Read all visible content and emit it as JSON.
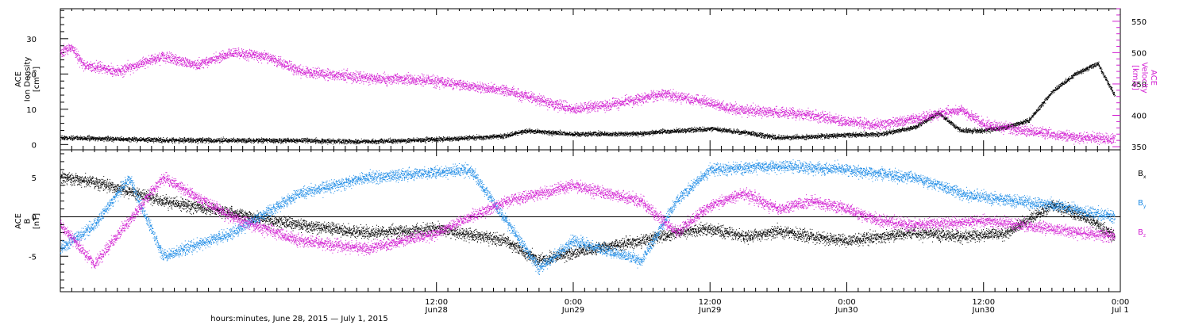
{
  "chart_data": {
    "x_range": [
      "2015-06-27T03:00",
      "2015-07-01T00:00"
    ],
    "x_ticks": [
      {
        "time": "2015-06-28T12:00",
        "label": "12:00",
        "sublabel": "Jun28"
      },
      {
        "time": "2015-06-29T00:00",
        "label": "0:00",
        "sublabel": "Jun29"
      },
      {
        "time": "2015-06-29T12:00",
        "label": "12:00",
        "sublabel": "Jun29"
      },
      {
        "time": "2015-06-30T00:00",
        "label": "0:00",
        "sublabel": "Jun30"
      },
      {
        "time": "2015-06-30T12:00",
        "label": "12:00",
        "sublabel": "Jun30"
      },
      {
        "time": "2015-07-01T00:00",
        "label": "0:00",
        "sublabel": "Jul 1"
      }
    ],
    "xlabel": "hours:minutes, June 28, 2015 — July  1, 2015",
    "panels": [
      {
        "type": "scatter",
        "ylabel_left": [
          "ACE",
          "Ion Density",
          "[cm⁻³]"
        ],
        "ylabel_right": [
          "ACE",
          "Velocity",
          "[km/s]"
        ],
        "ylim_left": [
          -1.5,
          38.5
        ],
        "ylim_right": [
          345,
          570
        ],
        "yticks_left": [
          0,
          10,
          20,
          30
        ],
        "yticks_right": [
          350,
          400,
          450,
          500,
          550
        ],
        "series": [
          {
            "axis": "left",
            "color": "#000000",
            "points": [
              [
                "2015-06-27T03:00",
                2.0
              ],
              [
                "2015-06-27T06:00",
                1.8
              ],
              [
                "2015-06-27T12:00",
                1.3
              ],
              [
                "2015-06-28T00:00",
                1.2
              ],
              [
                "2015-06-28T06:00",
                0.9
              ],
              [
                "2015-06-28T12:00",
                1.5
              ],
              [
                "2015-06-28T18:00",
                2.5
              ],
              [
                "2015-06-28T20:00",
                4.0
              ],
              [
                "2015-06-29T00:00",
                3.0
              ],
              [
                "2015-06-29T06:00",
                3.2
              ],
              [
                "2015-06-29T09:00",
                4.0
              ],
              [
                "2015-06-29T12:00",
                4.5
              ],
              [
                "2015-06-29T15:00",
                3.5
              ],
              [
                "2015-06-29T18:00",
                2.0
              ],
              [
                "2015-06-29T21:00",
                2.3
              ],
              [
                "2015-06-30T00:00",
                2.8
              ],
              [
                "2015-06-30T03:00",
                3.0
              ],
              [
                "2015-06-30T06:00",
                5.0
              ],
              [
                "2015-06-30T08:00",
                9.0
              ],
              [
                "2015-06-30T10:00",
                4.0
              ],
              [
                "2015-06-30T12:00",
                4.0
              ],
              [
                "2015-06-30T14:00",
                5.0
              ],
              [
                "2015-06-30T16:00",
                7.0
              ],
              [
                "2015-06-30T18:00",
                15.0
              ],
              [
                "2015-06-30T20:00",
                20.0
              ],
              [
                "2015-06-30T22:00",
                23.0
              ],
              [
                "2015-06-30T23:30",
                14.0
              ]
            ]
          },
          {
            "axis": "right",
            "color": "#d21ed2",
            "points": [
              [
                "2015-06-27T03:00",
                500
              ],
              [
                "2015-06-27T04:00",
                510
              ],
              [
                "2015-06-27T05:00",
                480
              ],
              [
                "2015-06-27T08:00",
                470
              ],
              [
                "2015-06-27T12:00",
                495
              ],
              [
                "2015-06-27T15:00",
                480
              ],
              [
                "2015-06-27T18:00",
                500
              ],
              [
                "2015-06-27T21:00",
                495
              ],
              [
                "2015-06-28T00:00",
                470
              ],
              [
                "2015-06-28T06:00",
                460
              ],
              [
                "2015-06-28T12:00",
                455
              ],
              [
                "2015-06-28T18:00",
                440
              ],
              [
                "2015-06-28T20:00",
                430
              ],
              [
                "2015-06-29T00:00",
                410
              ],
              [
                "2015-06-29T04:00",
                420
              ],
              [
                "2015-06-29T08:00",
                435
              ],
              [
                "2015-06-29T12:00",
                420
              ],
              [
                "2015-06-29T14:00",
                410
              ],
              [
                "2015-06-29T18:00",
                405
              ],
              [
                "2015-06-29T21:00",
                400
              ],
              [
                "2015-06-30T00:00",
                390
              ],
              [
                "2015-06-30T03:00",
                385
              ],
              [
                "2015-06-30T06:00",
                395
              ],
              [
                "2015-06-30T10:00",
                410
              ],
              [
                "2015-06-30T12:00",
                385
              ],
              [
                "2015-06-30T14:00",
                380
              ],
              [
                "2015-06-30T16:00",
                375
              ],
              [
                "2015-06-30T20:00",
                365
              ],
              [
                "2015-06-30T23:30",
                362
              ]
            ]
          }
        ]
      },
      {
        "type": "scatter",
        "ylabel_left": [
          "ACE",
          "B",
          "[nT]"
        ],
        "ylim_left": [
          -9.5,
          8.5
        ],
        "yticks_left": [
          -5,
          0,
          5
        ],
        "zero_line": true,
        "legend": [
          {
            "label": "B",
            "sub": "x",
            "color": "#000000"
          },
          {
            "label": "B",
            "sub": "y",
            "color": "#1e8ce6"
          },
          {
            "label": "B",
            "sub": "z",
            "color": "#d21ed2"
          }
        ],
        "series": [
          {
            "name": "Bx",
            "color": "#000000",
            "points": [
              [
                "2015-06-27T03:00",
                5.0
              ],
              [
                "2015-06-27T06:00",
                4.5
              ],
              [
                "2015-06-27T12:00",
                2.0
              ],
              [
                "2015-06-28T00:00",
                -1.0
              ],
              [
                "2015-06-28T06:00",
                -2.0
              ],
              [
                "2015-06-28T12:00",
                -1.5
              ],
              [
                "2015-06-28T18:00",
                -3.0
              ],
              [
                "2015-06-28T21:00",
                -5.5
              ],
              [
                "2015-06-29T00:00",
                -4.5
              ],
              [
                "2015-06-29T06:00",
                -3.0
              ],
              [
                "2015-06-29T09:00",
                -2.0
              ],
              [
                "2015-06-29T12:00",
                -1.5
              ],
              [
                "2015-06-29T15:00",
                -2.5
              ],
              [
                "2015-06-29T18:00",
                -1.8
              ],
              [
                "2015-06-29T21:00",
                -2.5
              ],
              [
                "2015-06-30T00:00",
                -3.0
              ],
              [
                "2015-06-30T06:00",
                -2.0
              ],
              [
                "2015-06-30T10:00",
                -2.5
              ],
              [
                "2015-06-30T14:00",
                -2.0
              ],
              [
                "2015-06-30T18:00",
                1.5
              ],
              [
                "2015-06-30T21:00",
                0.0
              ],
              [
                "2015-06-30T23:30",
                -2.5
              ]
            ]
          },
          {
            "name": "By",
            "color": "#1e8ce6",
            "points": [
              [
                "2015-06-27T03:00",
                -4.0
              ],
              [
                "2015-06-27T06:00",
                -1.0
              ],
              [
                "2015-06-27T09:00",
                5.0
              ],
              [
                "2015-06-27T12:00",
                -5.0
              ],
              [
                "2015-06-27T18:00",
                -2.0
              ],
              [
                "2015-06-28T00:00",
                3.0
              ],
              [
                "2015-06-28T06:00",
                5.0
              ],
              [
                "2015-06-28T15:00",
                6.0
              ],
              [
                "2015-06-28T21:00",
                -6.5
              ],
              [
                "2015-06-29T00:00",
                -3.0
              ],
              [
                "2015-06-29T06:00",
                -5.5
              ],
              [
                "2015-06-29T09:00",
                2.0
              ],
              [
                "2015-06-29T12:00",
                6.0
              ],
              [
                "2015-06-29T18:00",
                6.5
              ],
              [
                "2015-06-30T00:00",
                6.0
              ],
              [
                "2015-06-30T06:00",
                5.0
              ],
              [
                "2015-06-30T10:00",
                3.0
              ],
              [
                "2015-06-30T12:00",
                2.5
              ],
              [
                "2015-06-30T18:00",
                1.5
              ],
              [
                "2015-06-30T23:30",
                0.0
              ]
            ]
          },
          {
            "name": "Bz",
            "color": "#d21ed2",
            "points": [
              [
                "2015-06-27T03:00",
                -1.0
              ],
              [
                "2015-06-27T06:00",
                -6.0
              ],
              [
                "2015-06-27T12:00",
                5.0
              ],
              [
                "2015-06-27T18:00",
                0.0
              ],
              [
                "2015-06-28T00:00",
                -3.0
              ],
              [
                "2015-06-28T06:00",
                -4.0
              ],
              [
                "2015-06-28T12:00",
                -2.0
              ],
              [
                "2015-06-28T18:00",
                2.0
              ],
              [
                "2015-06-29T00:00",
                4.0
              ],
              [
                "2015-06-29T06:00",
                2.0
              ],
              [
                "2015-06-29T09:00",
                -2.0
              ],
              [
                "2015-06-29T12:00",
                1.5
              ],
              [
                "2015-06-29T15:00",
                3.0
              ],
              [
                "2015-06-29T18:00",
                1.0
              ],
              [
                "2015-06-29T21:00",
                2.0
              ],
              [
                "2015-06-30T00:00",
                1.0
              ],
              [
                "2015-06-30T03:00",
                -0.5
              ],
              [
                "2015-06-30T06:00",
                -1.0
              ],
              [
                "2015-06-30T12:00",
                -0.5
              ],
              [
                "2015-06-30T18:00",
                -1.5
              ],
              [
                "2015-06-30T23:30",
                -2.5
              ]
            ]
          }
        ]
      }
    ]
  }
}
